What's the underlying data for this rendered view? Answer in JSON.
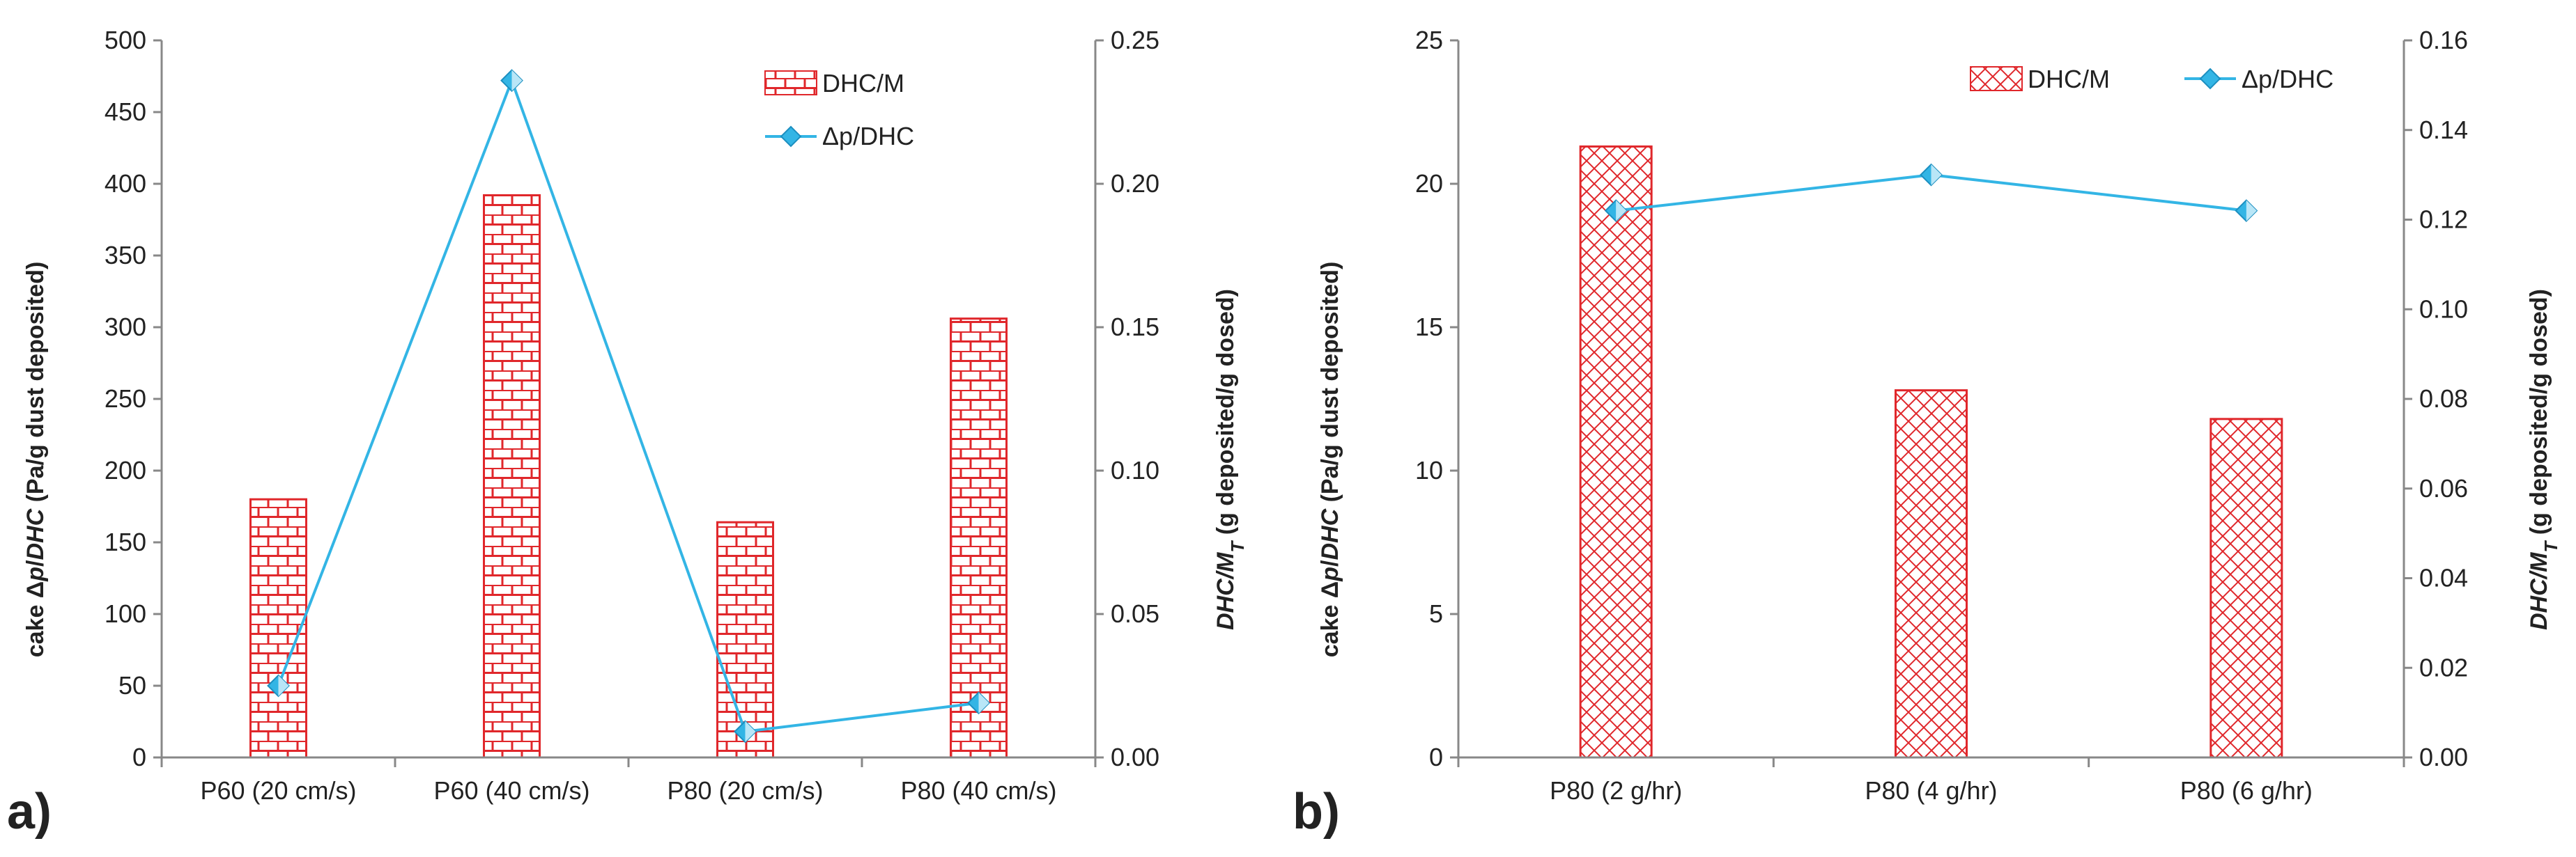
{
  "chart_data": [
    {
      "type": "bar",
      "panel_label": "a)",
      "categories": [
        "P60 (20 cm/s)",
        "P60 (40 cm/s)",
        "P80 (20 cm/s)",
        "P80 (40 cm/s)"
      ],
      "series": [
        {
          "name": "DHC/M",
          "kind": "bar",
          "axis": "left",
          "pattern": "brick",
          "color": "#e0272b",
          "values": [
            180,
            392,
            164,
            306
          ]
        },
        {
          "name": "Δp/DHC",
          "kind": "line",
          "axis": "right",
          "marker": "diamond",
          "color": "#33b5e5",
          "values": [
            0.025,
            0.236,
            0.009,
            0.019
          ]
        }
      ],
      "ylabel_left": "cake Δp/DHC (Pa/g dust deposited)",
      "ylabel_left_parts": [
        "cake Δ",
        "p",
        "/",
        "DHC",
        " (Pa/g dust deposited)"
      ],
      "ylabel_right": "DHC/MT (g deposited/g dosed)",
      "ylabel_right_parts": [
        "DHC/M",
        "T",
        " (g deposited/g dosed)"
      ],
      "ylim_left": [
        0,
        500
      ],
      "ylim_right": [
        0,
        0.25
      ],
      "left_ticks": [
        "0",
        "50",
        "100",
        "150",
        "200",
        "250",
        "300",
        "350",
        "400",
        "450",
        "500"
      ],
      "right_ticks": [
        "0.00",
        "0.05",
        "0.10",
        "0.15",
        "0.20",
        "0.25"
      ],
      "legend_placement": "top-right",
      "grid": false
    },
    {
      "type": "bar",
      "panel_label": "b)",
      "categories": [
        "P80 (2 g/hr)",
        "P80 (4 g/hr)",
        "P80 (6 g/hr)"
      ],
      "series": [
        {
          "name": "DHC/M",
          "kind": "bar",
          "axis": "left",
          "pattern": "crosshatch",
          "color": "#e0272b",
          "values": [
            21.3,
            12.8,
            11.8
          ]
        },
        {
          "name": "Δp/DHC",
          "kind": "line",
          "axis": "right",
          "marker": "diamond",
          "color": "#33b5e5",
          "values": [
            0.122,
            0.13,
            0.122
          ]
        }
      ],
      "ylabel_left": "cake Δp/DHC (Pa/g dust deposited)",
      "ylabel_left_parts": [
        "cake Δ",
        "p",
        "/",
        "DHC",
        " (Pa/g dust deposited)"
      ],
      "ylabel_right": "DHC/MT (g deposited/g dosed)",
      "ylabel_right_parts": [
        "DHC/M",
        "T",
        " (g deposited/g dosed)"
      ],
      "ylim_left": [
        0,
        25
      ],
      "ylim_right": [
        0,
        0.16
      ],
      "left_ticks": [
        "0",
        "5",
        "10",
        "15",
        "20",
        "25"
      ],
      "right_ticks": [
        "0.00",
        "0.02",
        "0.04",
        "0.06",
        "0.08",
        "0.10",
        "0.12",
        "0.14",
        "0.16"
      ],
      "legend_placement": "top-right",
      "grid": false
    }
  ]
}
